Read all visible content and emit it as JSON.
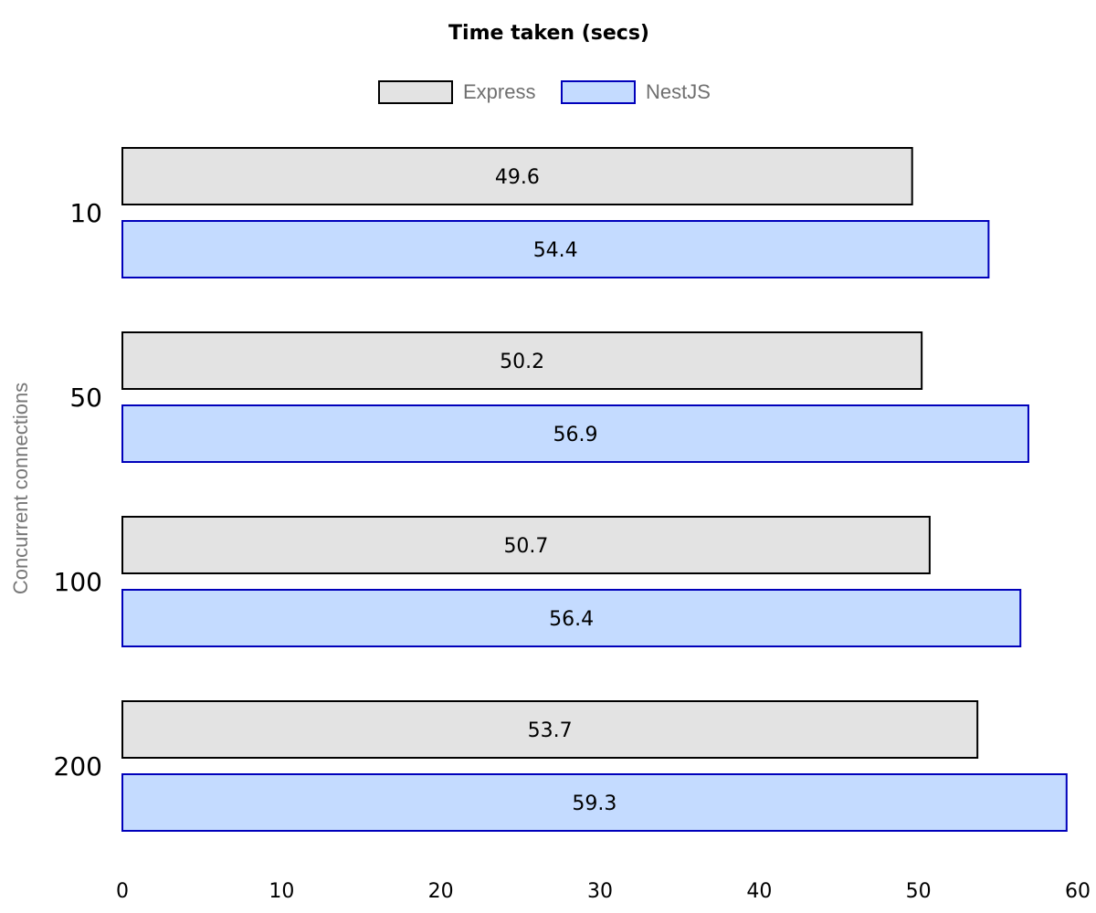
{
  "chart_data": {
    "type": "bar",
    "orientation": "horizontal",
    "title": "Time taken (secs)",
    "xlabel": "",
    "ylabel": "Concurrent connections",
    "categories": [
      "10",
      "50",
      "100",
      "200"
    ],
    "series": [
      {
        "name": "Express",
        "values": [
          49.6,
          50.2,
          50.7,
          53.7
        ],
        "fill": "#e3e3e3",
        "stroke": "#000000"
      },
      {
        "name": "NestJS",
        "values": [
          54.4,
          56.9,
          56.4,
          59.3
        ],
        "fill": "#c4dbff",
        "stroke": "#0000bb"
      }
    ],
    "xlim": [
      0,
      60
    ],
    "xticks": [
      0,
      10,
      20,
      30,
      40,
      50,
      60
    ],
    "grid": false,
    "legend_position": "top-center",
    "data_labels": true
  }
}
